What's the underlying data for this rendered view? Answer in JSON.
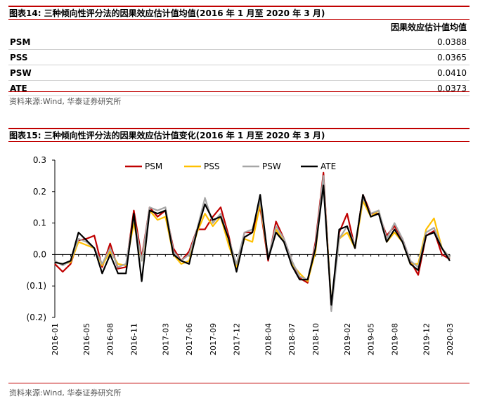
{
  "table_section": {
    "caption": "图表14:  三种倾向性评分法的因果效应估计值均值(2016 年 1 月至 2020 年 3 月)",
    "header_value": "因果效应估计值均值",
    "rows": [
      {
        "name": "PSM",
        "value": "0.0388"
      },
      {
        "name": "PSS",
        "value": "0.0365"
      },
      {
        "name": "PSW",
        "value": "0.0410"
      },
      {
        "name": "ATE",
        "value": "0.0373"
      }
    ],
    "source": "资料来源:Wind, 华泰证券研究所"
  },
  "chart_section": {
    "caption": "图表15:  三种倾向性评分法的因果效应估计值变化(2016 年 1 月至 2020 年 3 月)",
    "source": "资料来源:Wind, 华泰证券研究所"
  },
  "chart_data": {
    "type": "line",
    "ylim": [
      -0.2,
      0.3
    ],
    "yticks": [
      0.3,
      0.2,
      0.1,
      0.0,
      -0.1,
      -0.2
    ],
    "ytick_labels": [
      "0.3",
      "0.2",
      "0.1",
      "0.0",
      "(0.1)",
      "(0.2)"
    ],
    "grid": false,
    "legend_position": "top-center",
    "x": [
      "2016-01",
      "2016-02",
      "2016-03",
      "2016-04",
      "2016-05",
      "2016-06",
      "2016-07",
      "2016-08",
      "2016-09",
      "2016-10",
      "2016-11",
      "2016-12",
      "2017-01",
      "2017-02",
      "2017-03",
      "2017-04",
      "2017-05",
      "2017-06",
      "2017-07",
      "2017-08",
      "2017-09",
      "2017-10",
      "2017-11",
      "2017-12",
      "2018-01",
      "2018-02",
      "2018-03",
      "2018-04",
      "2018-05",
      "2018-06",
      "2018-07",
      "2018-08",
      "2018-09",
      "2018-10",
      "2018-11",
      "2018-12",
      "2019-01",
      "2019-02",
      "2019-03",
      "2019-04",
      "2019-05",
      "2019-06",
      "2019-07",
      "2019-08",
      "2019-09",
      "2019-10",
      "2019-11",
      "2019-12",
      "2020-01",
      "2020-02",
      "2020-03"
    ],
    "xtick_labels": [
      "2016-01",
      "2016-05",
      "2016-08",
      "2016-11",
      "2017-03",
      "2017-06",
      "2017-09",
      "2017-12",
      "2018-04",
      "2018-07",
      "2018-10",
      "2019-02",
      "2019-05",
      "2019-08",
      "2019-12",
      "2020-03"
    ],
    "series": [
      {
        "name": "PSM",
        "color": "#c00000",
        "values": [
          -0.03,
          -0.055,
          -0.03,
          0.045,
          0.05,
          0.06,
          -0.04,
          0.035,
          -0.045,
          -0.04,
          0.14,
          -0.01,
          0.15,
          0.12,
          0.14,
          0.02,
          -0.02,
          0.01,
          0.08,
          0.08,
          0.12,
          0.15,
          0.06,
          -0.05,
          0.07,
          0.07,
          0.15,
          -0.02,
          0.105,
          0.05,
          -0.02,
          -0.075,
          -0.09,
          0.04,
          0.26,
          -0.175,
          0.07,
          0.13,
          0.02,
          0.19,
          0.13,
          0.13,
          0.06,
          0.09,
          0.05,
          -0.02,
          -0.065,
          0.06,
          0.075,
          0.0,
          -0.015
        ]
      },
      {
        "name": "PSS",
        "color": "#ffc000",
        "values": [
          -0.025,
          -0.03,
          -0.025,
          0.04,
          0.03,
          0.02,
          -0.035,
          0.01,
          -0.03,
          -0.035,
          0.1,
          -0.02,
          0.14,
          0.11,
          0.12,
          0.0,
          -0.03,
          -0.02,
          0.07,
          0.13,
          0.09,
          0.12,
          0.03,
          -0.04,
          0.05,
          0.04,
          0.16,
          -0.01,
          0.08,
          0.04,
          -0.03,
          -0.06,
          -0.085,
          0.01,
          0.24,
          -0.16,
          0.05,
          0.07,
          0.02,
          0.17,
          0.12,
          0.14,
          0.04,
          0.07,
          0.04,
          -0.03,
          -0.03,
          0.08,
          0.115,
          0.02,
          -0.01
        ]
      },
      {
        "name": "PSW",
        "color": "#a6a6a6",
        "values": [
          -0.02,
          -0.035,
          -0.02,
          0.05,
          0.04,
          0.02,
          -0.03,
          0.02,
          -0.04,
          -0.03,
          0.12,
          -0.02,
          0.15,
          0.14,
          0.15,
          0.01,
          -0.02,
          0.0,
          0.08,
          0.18,
          0.1,
          0.13,
          0.05,
          -0.03,
          0.07,
          0.08,
          0.17,
          -0.01,
          0.09,
          0.05,
          -0.02,
          -0.07,
          -0.08,
          0.03,
          0.25,
          -0.18,
          0.05,
          0.09,
          0.03,
          0.18,
          0.13,
          0.14,
          0.05,
          0.1,
          0.05,
          -0.02,
          -0.04,
          0.07,
          0.085,
          0.02,
          -0.01
        ]
      },
      {
        "name": "ATE",
        "color": "#000000",
        "values": [
          -0.025,
          -0.03,
          -0.02,
          0.07,
          0.045,
          0.02,
          -0.06,
          0.0,
          -0.06,
          -0.06,
          0.13,
          -0.085,
          0.14,
          0.13,
          0.14,
          0.0,
          -0.02,
          -0.03,
          0.075,
          0.16,
          0.11,
          0.12,
          0.05,
          -0.055,
          0.055,
          0.07,
          0.19,
          -0.015,
          0.07,
          0.04,
          -0.035,
          -0.08,
          -0.08,
          0.02,
          0.22,
          -0.16,
          0.08,
          0.09,
          0.02,
          0.19,
          0.12,
          0.13,
          0.04,
          0.08,
          0.04,
          -0.03,
          -0.05,
          0.06,
          0.07,
          0.02,
          -0.02
        ]
      }
    ]
  }
}
